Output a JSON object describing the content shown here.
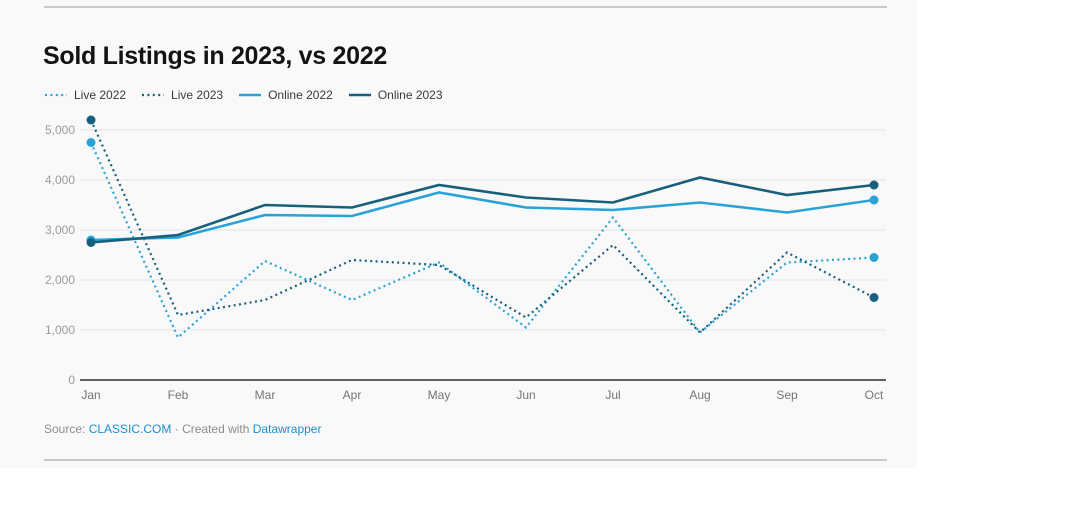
{
  "title": "Sold Listings in 2023, vs 2022",
  "colors": {
    "light_blue": "#29a3d7",
    "dark_teal": "#17607d",
    "grid": "#e4e4e4",
    "axis": "#2f2f2f",
    "rule": "#c9c9c9",
    "panel_bg": "#f9f9f9"
  },
  "legend": {
    "items": [
      {
        "label": "Live 2022",
        "style": "dotted",
        "color": "#29a3d7"
      },
      {
        "label": "Live 2023",
        "style": "dotted",
        "color": "#17607d"
      },
      {
        "label": "Online 2022",
        "style": "solid",
        "color": "#29a3d7"
      },
      {
        "label": "Online 2023",
        "style": "solid",
        "color": "#17607d"
      }
    ]
  },
  "footer": {
    "source_label": "Source: ",
    "source_link": "CLASSIC.COM",
    "separator": " · ",
    "created_label": "Created with ",
    "tool_link": "Datawrapper"
  },
  "chart_data": {
    "type": "line",
    "title": "Sold Listings in 2023, vs 2022",
    "categories": [
      "Jan",
      "Feb",
      "Mar",
      "Apr",
      "May",
      "Jun",
      "Jul",
      "Aug",
      "Sep",
      "Oct"
    ],
    "y_ticks": [
      0,
      1000,
      2000,
      3000,
      4000,
      5000
    ],
    "y_tick_labels": [
      "0",
      "1,000",
      "2,000",
      "3,000",
      "4,000",
      "5,000"
    ],
    "ylim": [
      0,
      5200
    ],
    "grid": "horizontal-only",
    "legend_position": "top-left",
    "series": [
      {
        "name": "Live 2022",
        "style": "dotted",
        "color": "#29a3d7",
        "values": [
          4750,
          850,
          2380,
          1600,
          2350,
          1050,
          3250,
          950,
          2350,
          2450
        ]
      },
      {
        "name": "Live 2023",
        "style": "dotted",
        "color": "#17607d",
        "values": [
          5200,
          1300,
          1600,
          2400,
          2300,
          1250,
          2700,
          950,
          2550,
          1650
        ]
      },
      {
        "name": "Online 2022",
        "style": "solid",
        "color": "#29a3d7",
        "values": [
          2800,
          2850,
          3300,
          3280,
          3750,
          3450,
          3400,
          3550,
          3350,
          3600
        ]
      },
      {
        "name": "Online 2023",
        "style": "solid",
        "color": "#17607d",
        "values": [
          2750,
          2900,
          3500,
          3450,
          3900,
          3650,
          3550,
          4050,
          3700,
          3900
        ]
      }
    ]
  }
}
